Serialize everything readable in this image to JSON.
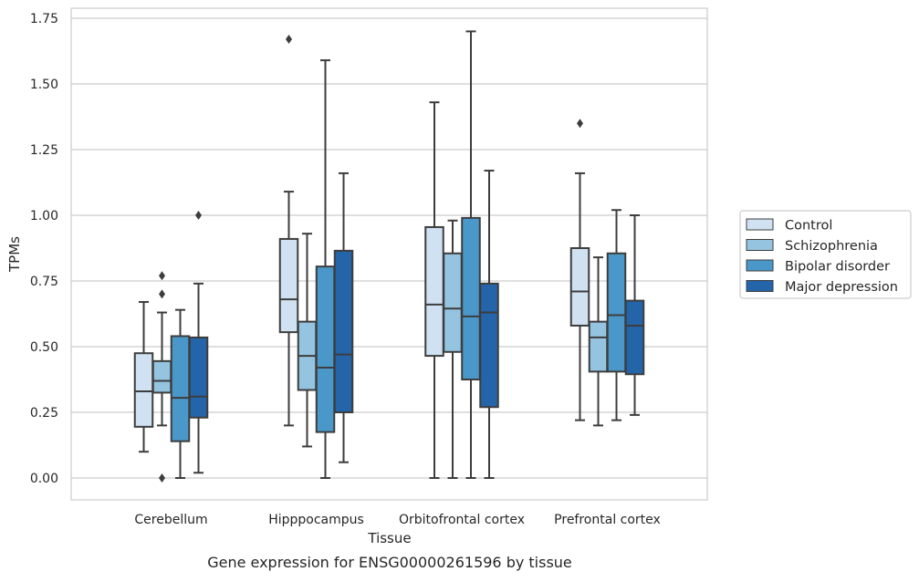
{
  "chart_data": {
    "type": "box",
    "title": "",
    "caption": "Gene expression for ENSG00000261596 by tissue",
    "xlabel": "Tissue",
    "ylabel": "TPMs",
    "ylim": [
      -0.08,
      1.78
    ],
    "yticks": [
      0.0,
      0.25,
      0.5,
      0.75,
      1.0,
      1.25,
      1.5,
      1.75
    ],
    "ytick_labels": [
      "0.00",
      "0.25",
      "0.50",
      "0.75",
      "1.00",
      "1.25",
      "1.50",
      "1.75"
    ],
    "grid": "horizontal",
    "legend_position": "right",
    "categories": [
      "Cerebellum",
      "Hipppocampus",
      "Orbitofrontal cortex",
      "Prefrontal cortex"
    ],
    "series": [
      {
        "name": "Control",
        "color": "#d0e1f2",
        "boxes": [
          {
            "whisker_low": 0.1,
            "q1": 0.195,
            "median": 0.33,
            "q3": 0.475,
            "whisker_high": 0.67,
            "outliers": []
          },
          {
            "whisker_low": 0.2,
            "q1": 0.555,
            "median": 0.68,
            "q3": 0.91,
            "whisker_high": 1.09,
            "outliers": [
              1.67
            ]
          },
          {
            "whisker_low": 0.0,
            "q1": 0.465,
            "median": 0.66,
            "q3": 0.955,
            "whisker_high": 1.43,
            "outliers": []
          },
          {
            "whisker_low": 0.22,
            "q1": 0.58,
            "median": 0.71,
            "q3": 0.875,
            "whisker_high": 1.16,
            "outliers": [
              1.35
            ]
          }
        ]
      },
      {
        "name": "Schizophrenia",
        "color": "#94c4df",
        "boxes": [
          {
            "whisker_low": 0.2,
            "q1": 0.325,
            "median": 0.37,
            "q3": 0.445,
            "whisker_high": 0.63,
            "outliers": [
              0.77,
              0.7,
              0.0
            ]
          },
          {
            "whisker_low": 0.12,
            "q1": 0.335,
            "median": 0.465,
            "q3": 0.595,
            "whisker_high": 0.93,
            "outliers": []
          },
          {
            "whisker_low": 0.0,
            "q1": 0.48,
            "median": 0.645,
            "q3": 0.855,
            "whisker_high": 0.98,
            "outliers": []
          },
          {
            "whisker_low": 0.2,
            "q1": 0.405,
            "median": 0.535,
            "q3": 0.595,
            "whisker_high": 0.84,
            "outliers": []
          }
        ]
      },
      {
        "name": "Bipolar disorder",
        "color": "#4a98c9",
        "boxes": [
          {
            "whisker_low": 0.0,
            "q1": 0.14,
            "median": 0.305,
            "q3": 0.54,
            "whisker_high": 0.64,
            "outliers": []
          },
          {
            "whisker_low": 0.0,
            "q1": 0.175,
            "median": 0.42,
            "q3": 0.805,
            "whisker_high": 1.59,
            "outliers": []
          },
          {
            "whisker_low": 0.0,
            "q1": 0.375,
            "median": 0.615,
            "q3": 0.99,
            "whisker_high": 1.7,
            "outliers": []
          },
          {
            "whisker_low": 0.22,
            "q1": 0.405,
            "median": 0.62,
            "q3": 0.855,
            "whisker_high": 1.02,
            "outliers": []
          }
        ]
      },
      {
        "name": "Major depression",
        "color": "#2464a8",
        "boxes": [
          {
            "whisker_low": 0.02,
            "q1": 0.23,
            "median": 0.31,
            "q3": 0.535,
            "whisker_high": 0.74,
            "outliers": [
              1.0
            ]
          },
          {
            "whisker_low": 0.06,
            "q1": 0.25,
            "median": 0.47,
            "q3": 0.865,
            "whisker_high": 1.16,
            "outliers": []
          },
          {
            "whisker_low": 0.0,
            "q1": 0.27,
            "median": 0.63,
            "q3": 0.74,
            "whisker_high": 1.17,
            "outliers": []
          },
          {
            "whisker_low": 0.24,
            "q1": 0.395,
            "median": 0.58,
            "q3": 0.675,
            "whisker_high": 1.0,
            "outliers": []
          }
        ]
      }
    ],
    "colors": {
      "line": "#3d3d3d",
      "grid": "#cccccc",
      "frame": "#cccccc",
      "background": "#ffffff"
    }
  }
}
